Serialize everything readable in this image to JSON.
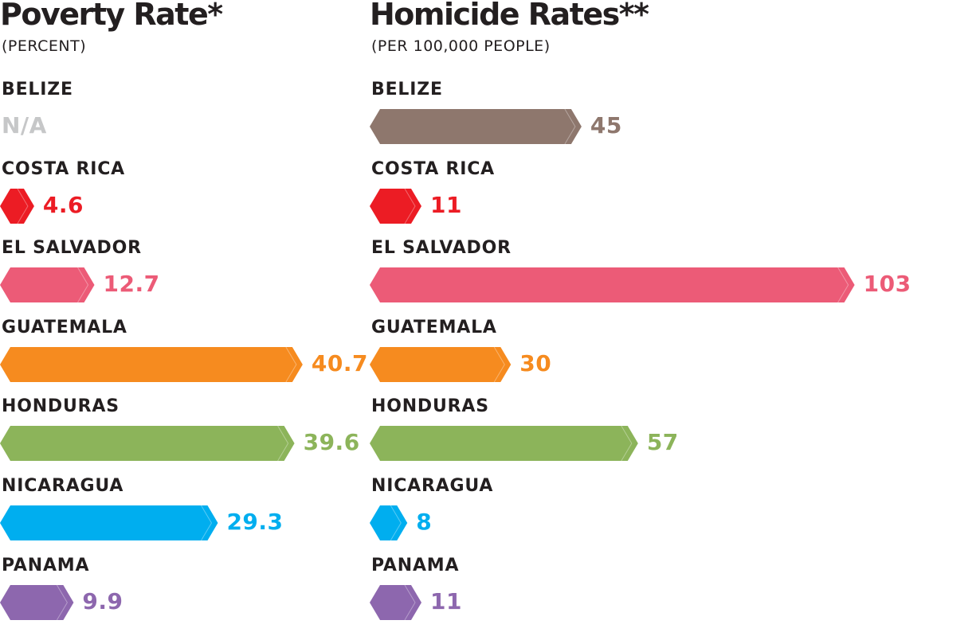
{
  "chart_data": [
    {
      "type": "bar",
      "orientation": "horizontal",
      "title": "Poverty Rate*",
      "subtitle": "(PERCENT)",
      "categories": [
        "BELIZE",
        "COSTA RICA",
        "EL SALVADOR",
        "GUATEMALA",
        "HONDURAS",
        "NICARAGUA",
        "PANAMA"
      ],
      "values": [
        null,
        4.6,
        12.7,
        40.7,
        39.6,
        29.3,
        9.9
      ],
      "value_labels": [
        "N/A",
        "4.6",
        "12.7",
        "40.7",
        "39.6",
        "29.3",
        "9.9"
      ],
      "colors": [
        "#c6c7c8",
        "#ec1c24",
        "#ec5b77",
        "#f68b1f",
        "#8cb45a",
        "#00aeef",
        "#8d67ae"
      ],
      "xlim": [
        0,
        45
      ],
      "grid": false
    },
    {
      "type": "bar",
      "orientation": "horizontal",
      "title": "Homicide Rates**",
      "subtitle": "(PER 100,000 PEOPLE)",
      "categories": [
        "BELIZE",
        "COSTA RICA",
        "EL SALVADOR",
        "GUATEMALA",
        "HONDURAS",
        "NICARAGUA",
        "PANAMA"
      ],
      "values": [
        45,
        11,
        103,
        30,
        57,
        8,
        11
      ],
      "value_labels": [
        "45",
        "11",
        "103",
        "30",
        "57",
        "8",
        "11"
      ],
      "colors": [
        "#8e776d",
        "#ec1c24",
        "#ec5b77",
        "#f68b1f",
        "#8cb45a",
        "#00aeef",
        "#8d67ae"
      ],
      "xlim": [
        0,
        110
      ],
      "grid": false
    }
  ]
}
